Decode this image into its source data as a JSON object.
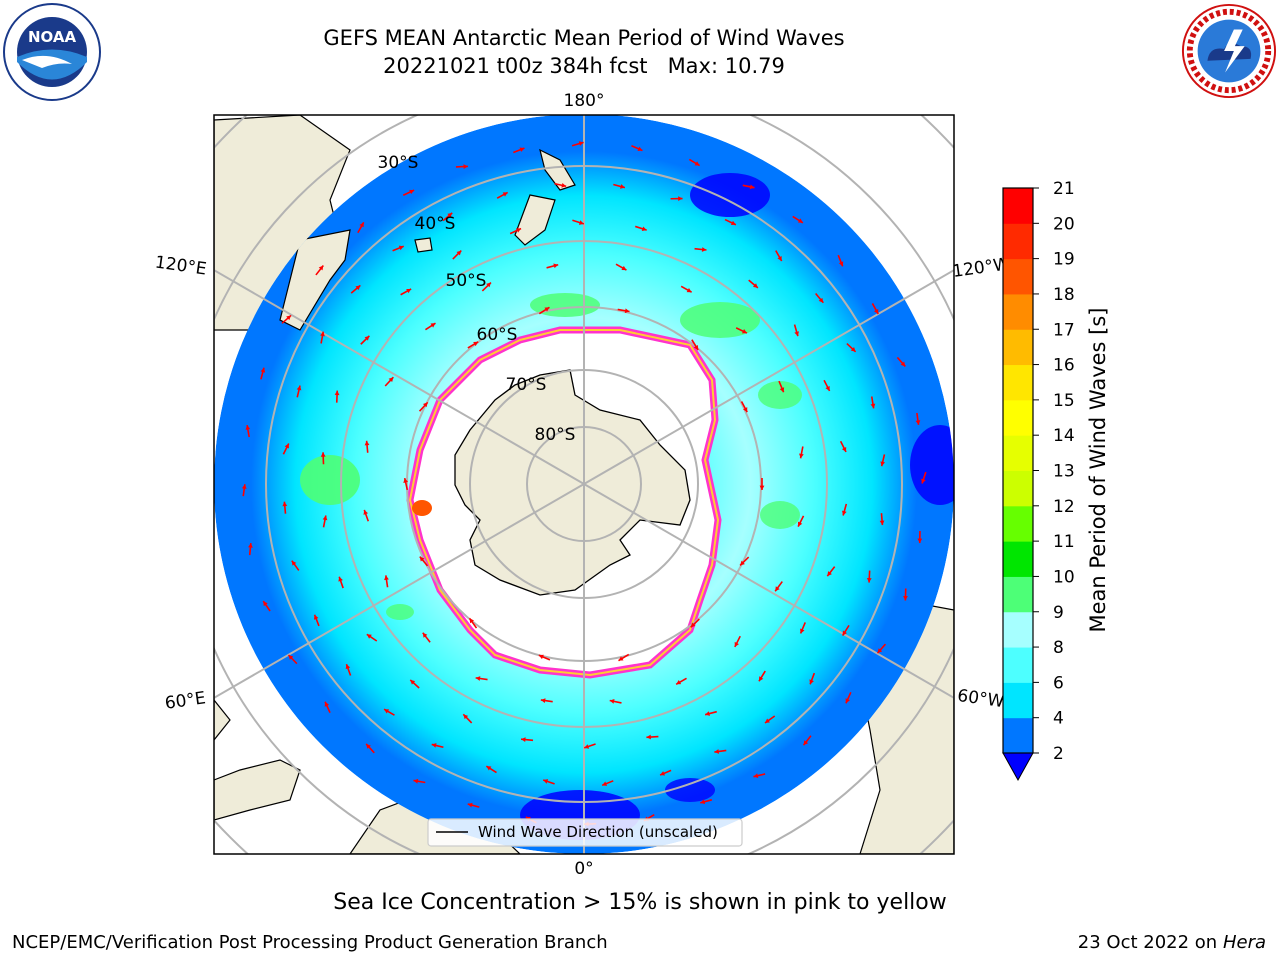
{
  "title": {
    "line1": "GEFS MEAN Antarctic Mean Period of Wind Waves",
    "line2": "20221021 t00z 384h fcst   Max: 10.79"
  },
  "logos": {
    "noaa": {
      "text": "NOAA",
      "ring_text": "NATIONAL OCEANIC AND ATMOSPHERIC ADMINISTRATION · U.S. DEPARTMENT OF COMMERCE"
    },
    "nws": {
      "ring_text": "NATIONAL WEATHER SERVICE"
    }
  },
  "map": {
    "projection": "south-polar-stereographic",
    "lon_labels": {
      "top": "180°",
      "bottom": "0°",
      "upper_left": "120°E",
      "upper_right": "120°W",
      "lower_left": "60°E",
      "lower_right": "60°W"
    },
    "lat_labels": [
      "30°S",
      "40°S",
      "50°S",
      "60°S",
      "70°S",
      "80°S"
    ],
    "legend": "Wind Wave Direction (unscaled)",
    "colors": {
      "land": "#efecd9",
      "ice_edge_pink": "#ff33cc",
      "ice_edge_yellow": "#ffcc33",
      "arrow": "#ff0000"
    }
  },
  "colorbar": {
    "label": "Mean Period of Wind Waves [s]",
    "ticks": [
      "2",
      "4",
      "6",
      "8",
      "9",
      "10",
      "11",
      "12",
      "13",
      "14",
      "15",
      "16",
      "17",
      "18",
      "19",
      "20",
      "21"
    ],
    "colors": [
      "#0077ff",
      "#00e5ff",
      "#4dffff",
      "#a6ffff",
      "#4dff77",
      "#00e600",
      "#66ff00",
      "#ccff00",
      "#e6ff00",
      "#ffff00",
      "#ffe600",
      "#ffbb00",
      "#ff8c00",
      "#ff5500",
      "#ff2a00",
      "#ff0000"
    ],
    "under_color": "#0000ff"
  },
  "chart_data": {
    "type": "heatmap",
    "title": "GEFS MEAN Antarctic Mean Period of Wind Waves",
    "subtitle": "20221021 t00z 384h fcst   Max: 10.79",
    "variable": "Mean Period of Wind Waves [s]",
    "max": 10.79,
    "levels": [
      2,
      4,
      6,
      8,
      9,
      10,
      11,
      12,
      13,
      14,
      15,
      16,
      17,
      18,
      19,
      20,
      21
    ],
    "latitude_circles": [
      "30°S",
      "40°S",
      "50°S",
      "60°S",
      "70°S",
      "80°S"
    ],
    "meridians": [
      "0°",
      "60°W",
      "120°W",
      "180°",
      "120°E",
      "60°E"
    ]
  },
  "caption": "Sea Ice Concentration > 15% is shown in pink to yellow",
  "footer": {
    "left": "NCEP/EMC/Verification Post Processing Product Generation Branch",
    "right_date": "23 Oct 2022 on ",
    "right_host": "Hera"
  }
}
